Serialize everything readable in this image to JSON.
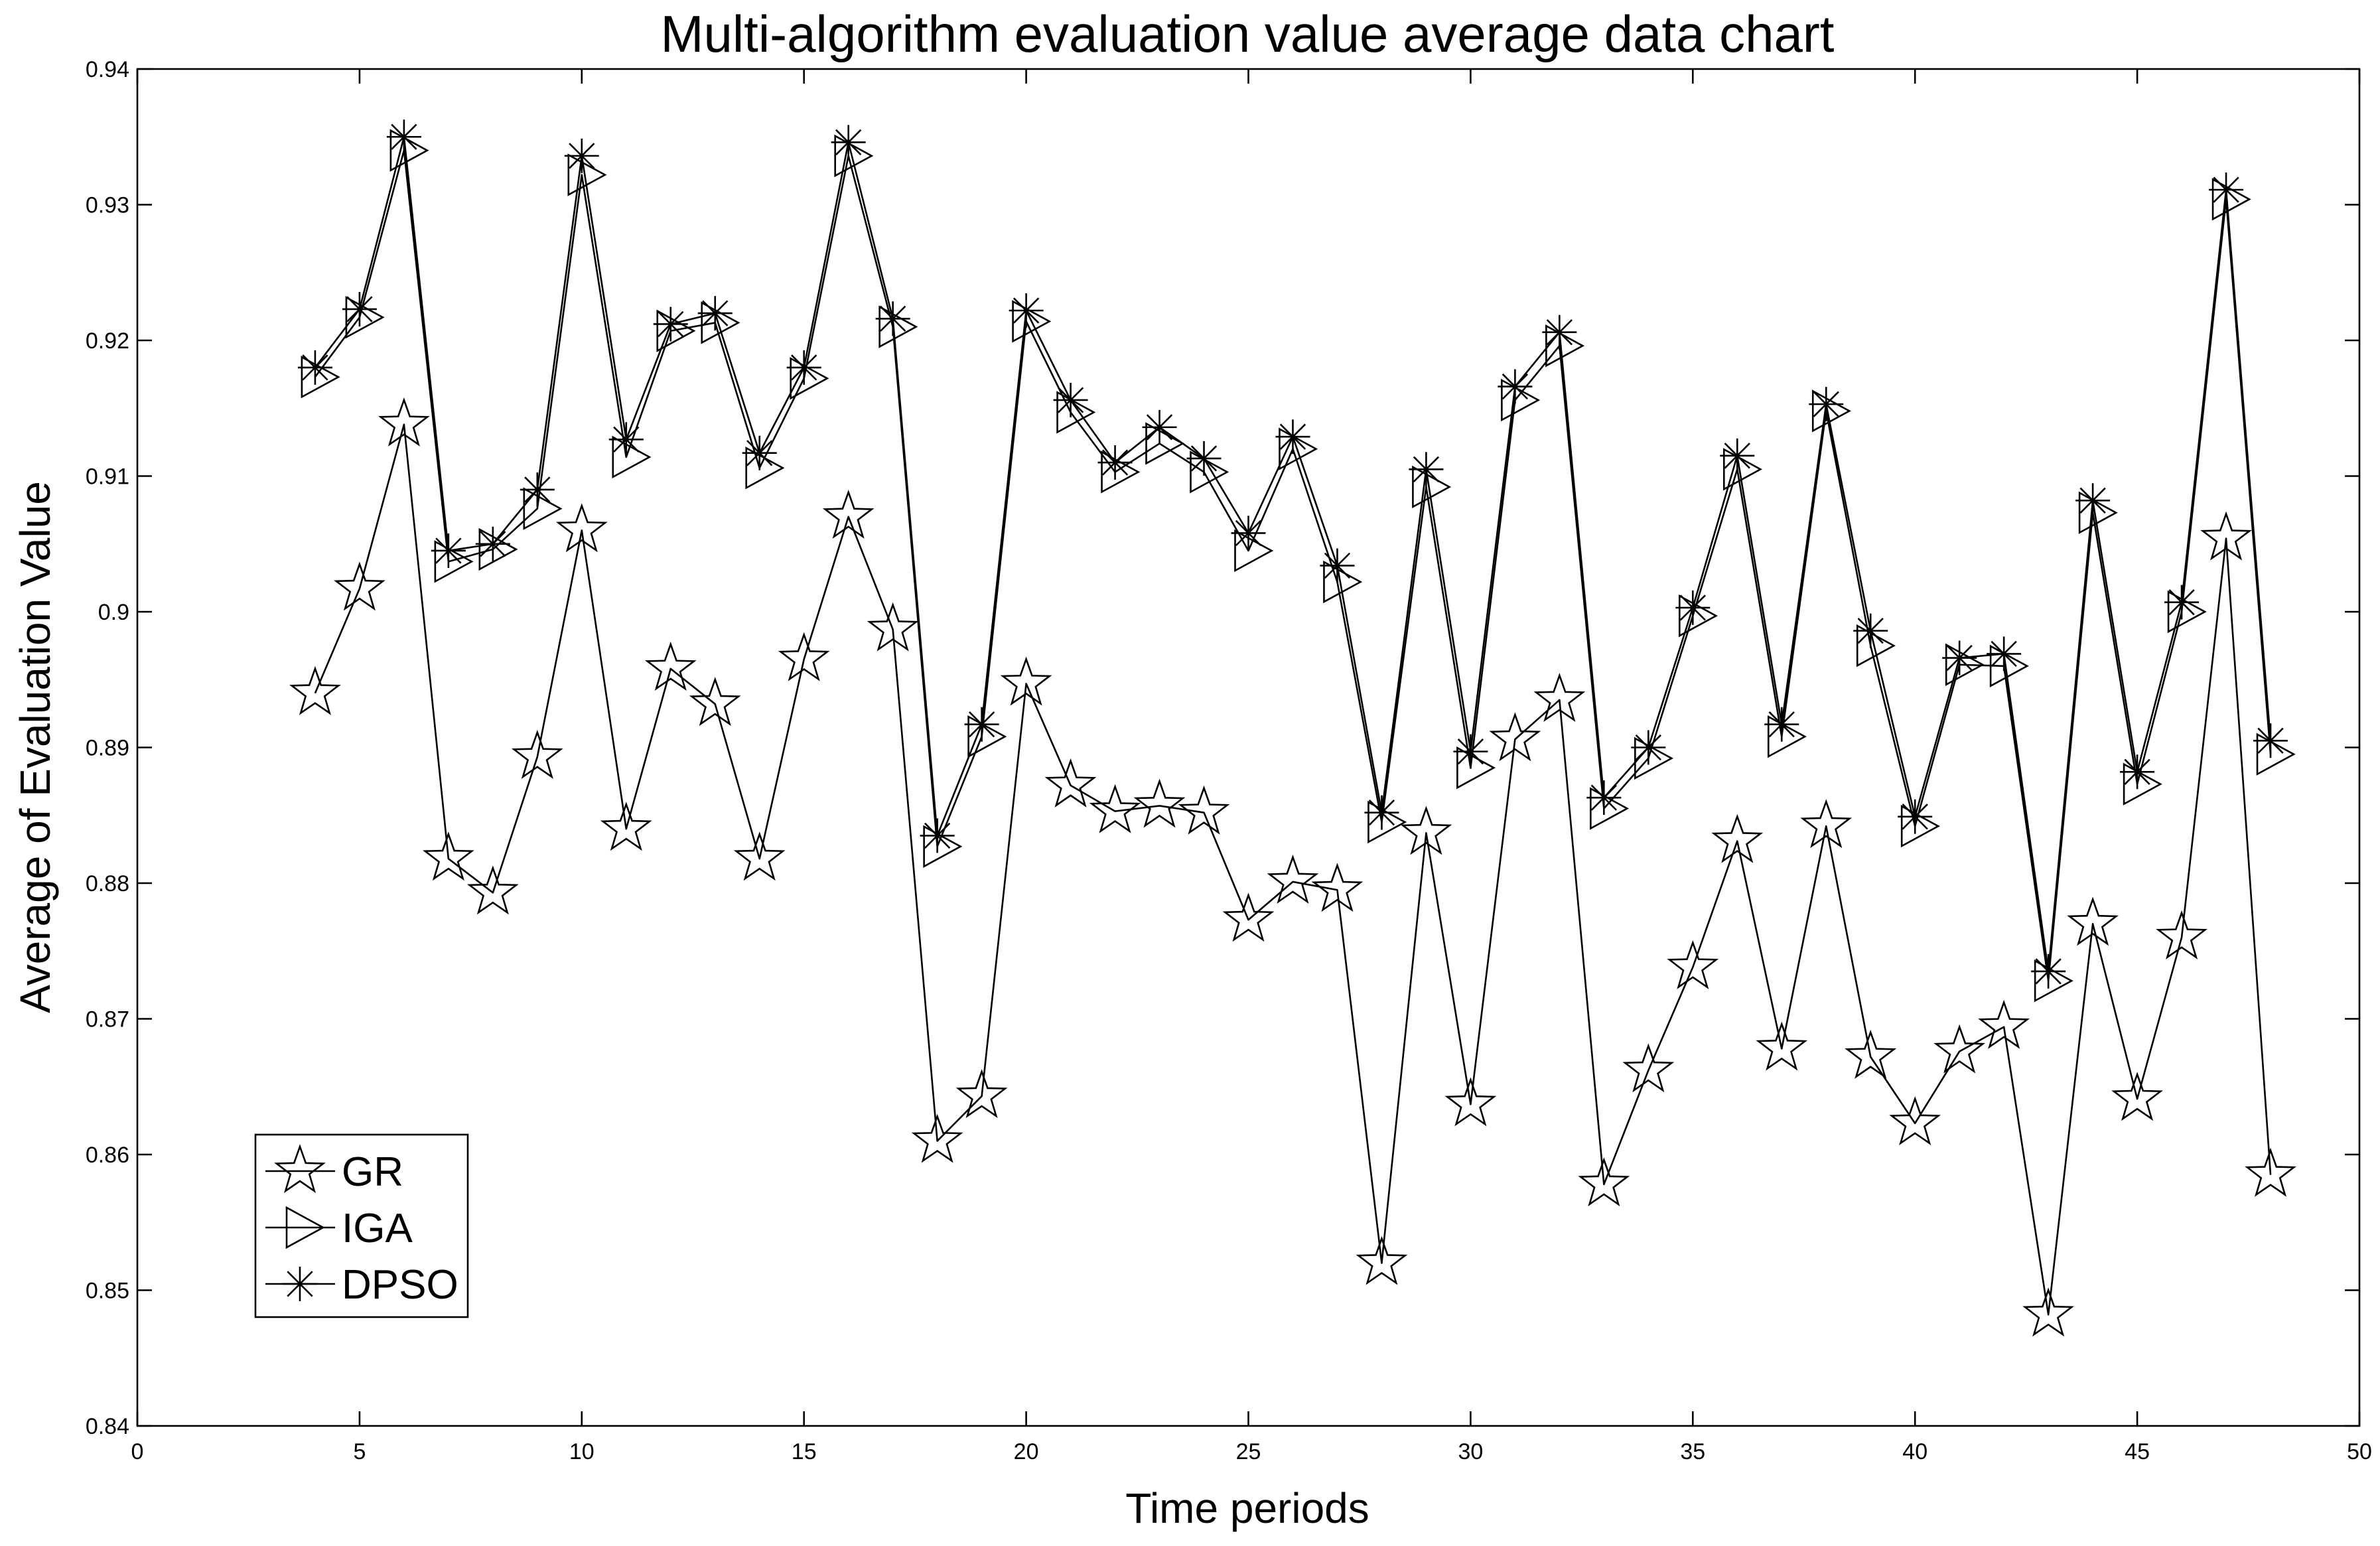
{
  "chart_data": {
    "type": "line",
    "title": "Multi-algorithm evaluation value average data chart",
    "xlabel": "Time periods",
    "ylabel": "Average of Evaluation Value",
    "xlim": [
      0,
      50
    ],
    "ylim": [
      0.84,
      0.94
    ],
    "xticks": [
      0,
      5,
      10,
      15,
      20,
      25,
      30,
      35,
      40,
      45,
      50
    ],
    "xtick_labels": [
      "0",
      "5",
      "10",
      "15",
      "20",
      "25",
      "30",
      "35",
      "40",
      "45",
      "50"
    ],
    "yticks": [
      0.84,
      0.85,
      0.86,
      0.87,
      0.88,
      0.89,
      0.9,
      0.91,
      0.92,
      0.93,
      0.94
    ],
    "ytick_labels": [
      "0.84",
      "0.85",
      "0.86",
      "0.87",
      "0.88",
      "0.89",
      "0.9",
      "0.91",
      "0.92",
      "0.93",
      "0.94"
    ],
    "grid": false,
    "legend_position": "bottom-left",
    "x": [
      4,
      5,
      6,
      7,
      8,
      9,
      10,
      11,
      12,
      13,
      14,
      15,
      16,
      17,
      18,
      19,
      20,
      21,
      22,
      23,
      24,
      25,
      26,
      27,
      28,
      29,
      30,
      31,
      32,
      33,
      34,
      35,
      36,
      37,
      38,
      39,
      40,
      41,
      42,
      43,
      44,
      45,
      46,
      47,
      48
    ],
    "series": [
      {
        "name": "GR",
        "marker": "pentagram",
        "values": [
          0.894,
          0.9017,
          0.9138,
          0.8818,
          0.8793,
          0.8893,
          0.906,
          0.884,
          0.8958,
          0.8932,
          0.8818,
          0.8965,
          0.907,
          0.8987,
          0.861,
          0.8643,
          0.8947,
          0.8872,
          0.8853,
          0.8857,
          0.8852,
          0.8773,
          0.8801,
          0.8795,
          0.852,
          0.8837,
          0.8637,
          0.8906,
          0.8935,
          0.8578,
          0.8662,
          0.8738,
          0.8831,
          0.8678,
          0.8842,
          0.8672,
          0.8623,
          0.8676,
          0.8694,
          0.8482,
          0.877,
          0.8641,
          0.876,
          0.9054,
          0.8585
        ]
      },
      {
        "name": "IGA",
        "marker": "triangle-right",
        "values": [
          0.9173,
          0.9217,
          0.934,
          0.9037,
          0.9046,
          0.9076,
          0.9322,
          0.9114,
          0.9207,
          0.9213,
          0.9106,
          0.9172,
          0.9336,
          0.921,
          0.8827,
          0.8908,
          0.9214,
          0.9147,
          0.9103,
          0.9124,
          0.9103,
          0.9045,
          0.912,
          0.9022,
          0.8845,
          0.9092,
          0.8885,
          0.9156,
          0.9196,
          0.8855,
          0.8892,
          0.8997,
          0.9105,
          0.8908,
          0.9148,
          0.8975,
          0.8842,
          0.8961,
          0.896,
          0.8728,
          0.9073,
          0.8873,
          0.9,
          0.9304,
          0.8895
        ]
      },
      {
        "name": "DPSO",
        "marker": "asterisk",
        "values": [
          0.918,
          0.9223,
          0.935,
          0.9045,
          0.905,
          0.909,
          0.9336,
          0.9127,
          0.9212,
          0.922,
          0.9117,
          0.918,
          0.9346,
          0.9216,
          0.8835,
          0.8917,
          0.9222,
          0.9156,
          0.911,
          0.9136,
          0.9113,
          0.9058,
          0.9129,
          0.9034,
          0.8852,
          0.9105,
          0.8897,
          0.9166,
          0.9206,
          0.8863,
          0.89,
          0.9003,
          0.9115,
          0.8917,
          0.9153,
          0.8986,
          0.8849,
          0.8966,
          0.8969,
          0.8735,
          0.9082,
          0.8882,
          0.9007,
          0.9311,
          0.8905
        ]
      }
    ]
  }
}
